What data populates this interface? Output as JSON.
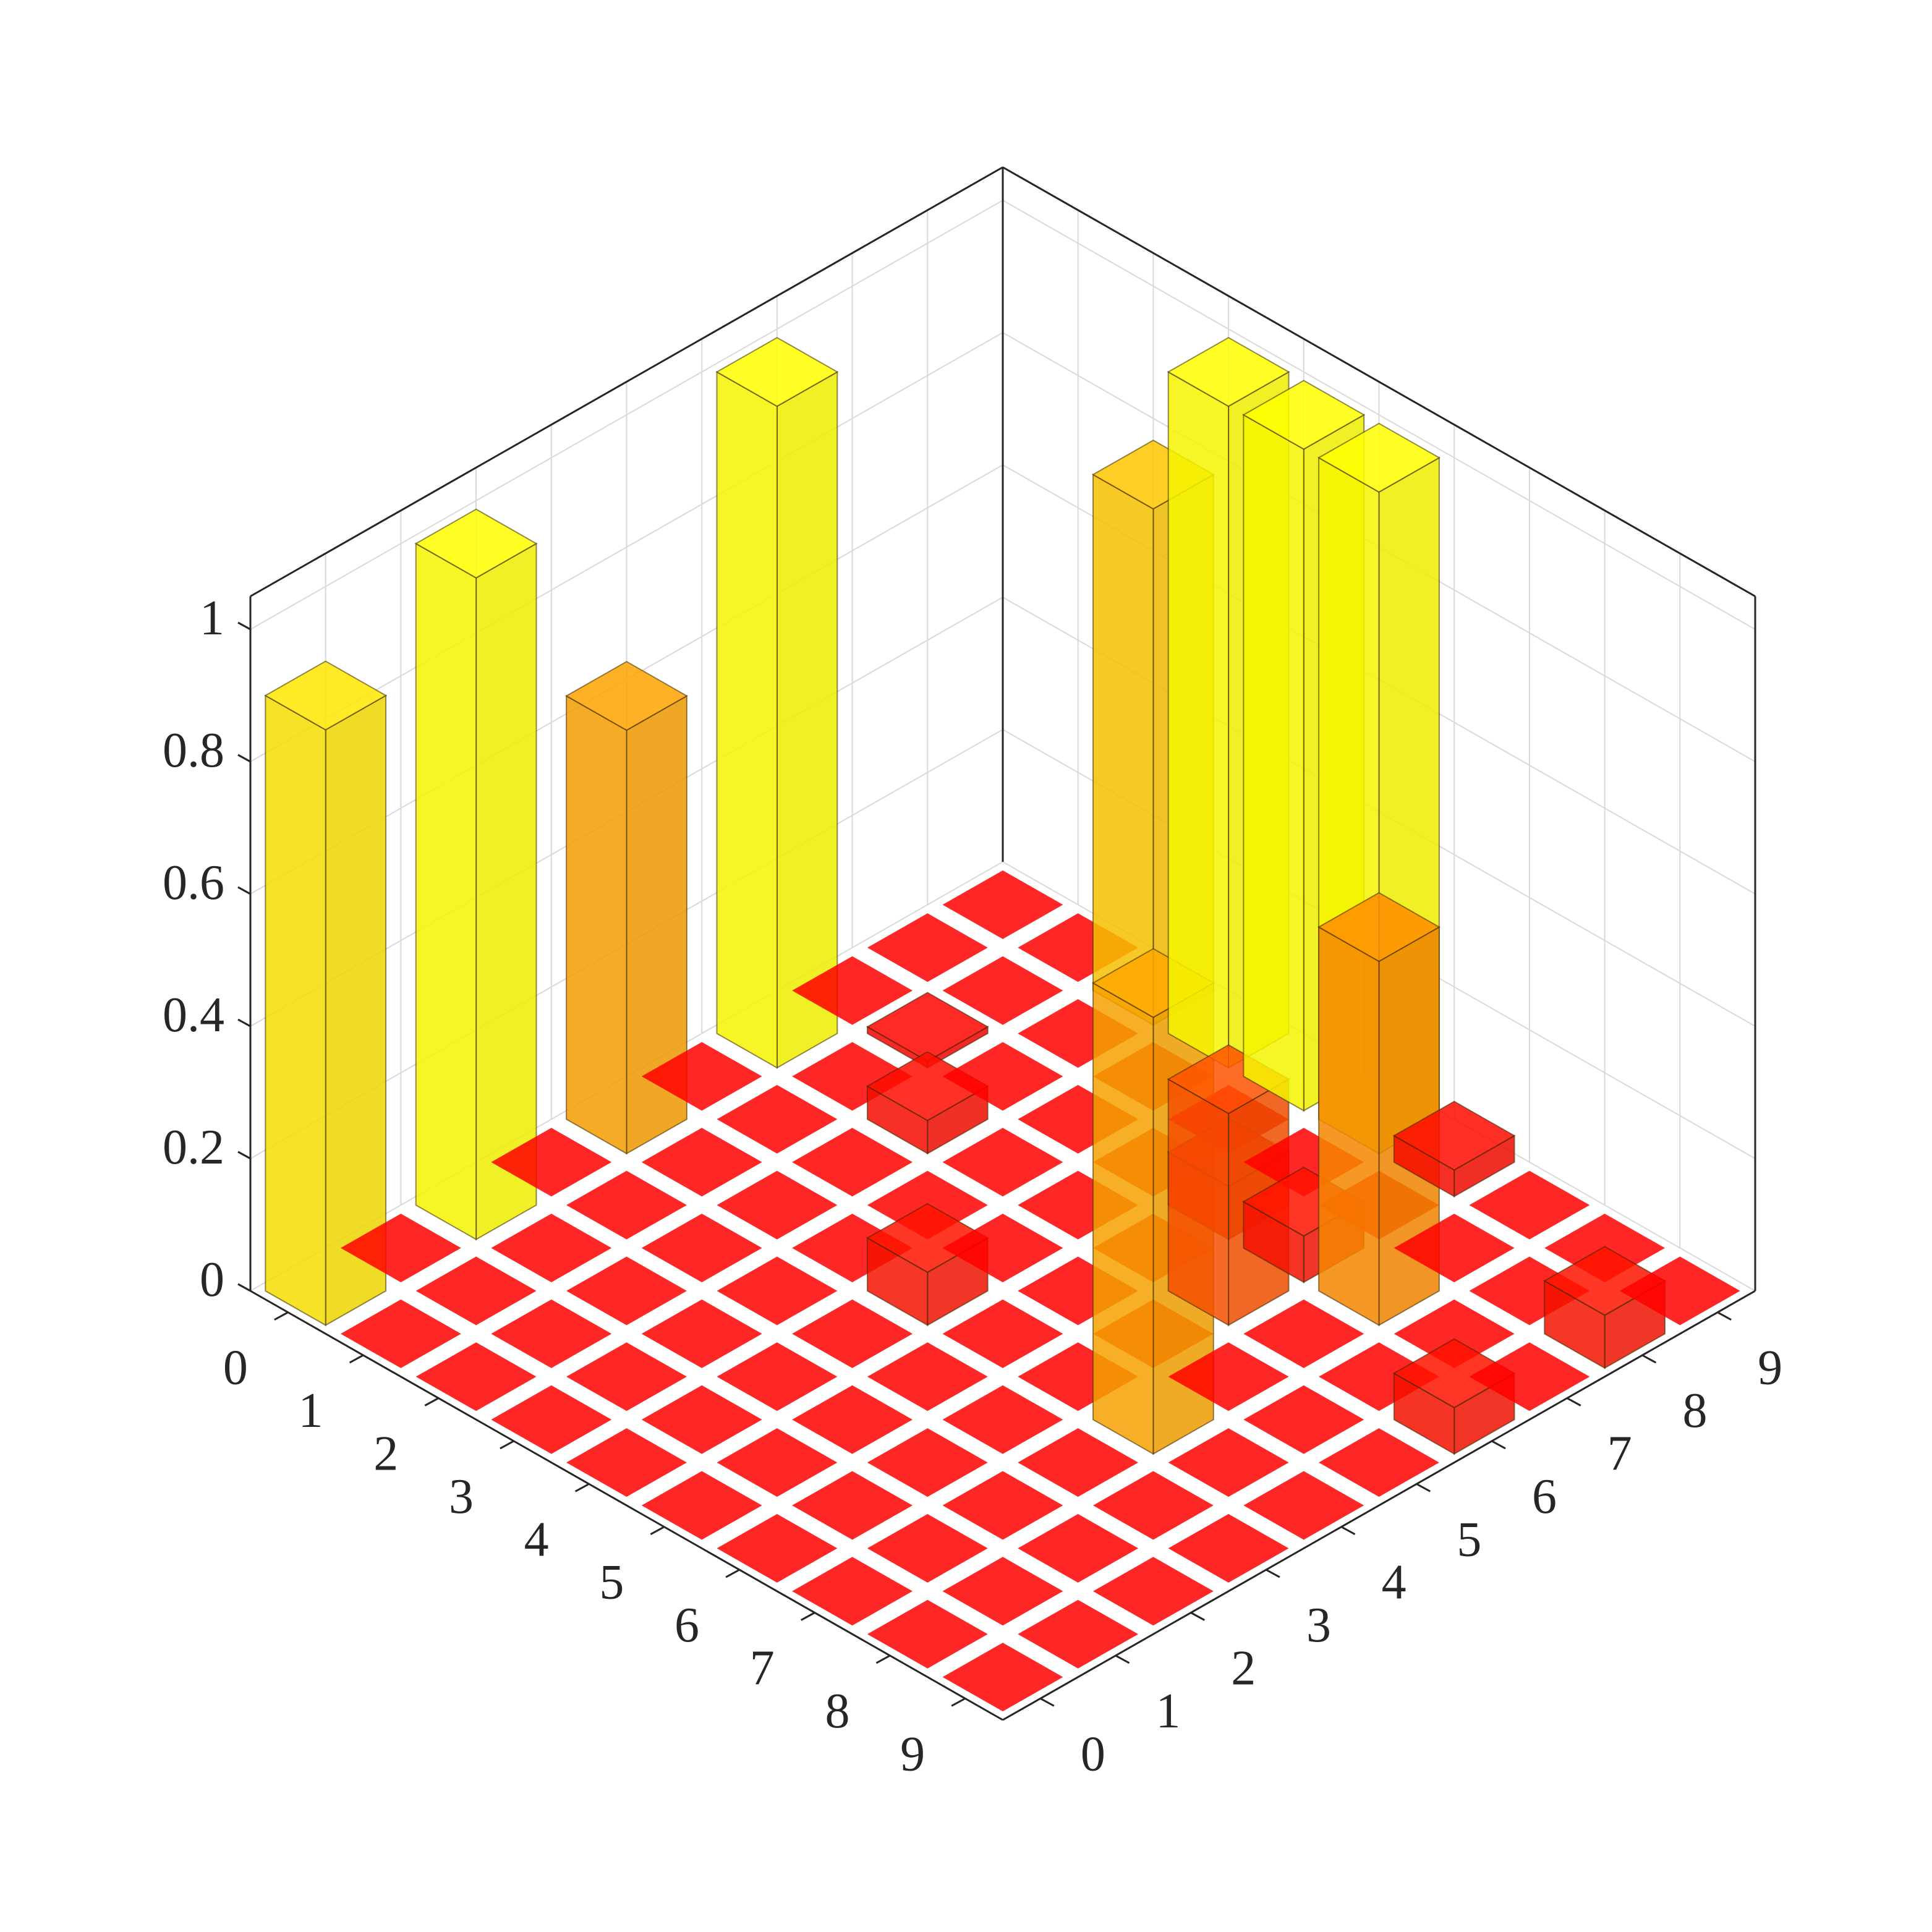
{
  "chart_data": {
    "type": "bar3d",
    "title": "",
    "xlabel": "",
    "ylabel": "",
    "zlabel": "",
    "x_ticks": [
      "0",
      "1",
      "2",
      "3",
      "4",
      "5",
      "6",
      "7",
      "8",
      "9"
    ],
    "y_ticks": [
      "0",
      "1",
      "2",
      "3",
      "4",
      "5",
      "6",
      "7",
      "8",
      "9"
    ],
    "z_ticks": [
      "0",
      "0.2",
      "0.4",
      "0.6",
      "0.8",
      "1"
    ],
    "zlim": [
      0,
      1.05
    ],
    "grid": true,
    "colormap": "autumn",
    "colormap_colors": {
      "low": "#ff0000",
      "high": "#ffff00"
    },
    "bar_alpha": 0.85,
    "default_value": 0.0,
    "values": [
      {
        "x": 0,
        "y": 0,
        "z": 0.9
      },
      {
        "x": 0,
        "y": 2,
        "z": 1.0
      },
      {
        "x": 0,
        "y": 4,
        "z": 0.64
      },
      {
        "x": 0,
        "y": 6,
        "z": 1.0
      },
      {
        "x": 0,
        "y": 9,
        "z": 0.0
      },
      {
        "x": 2,
        "y": 9,
        "z": 0.78
      },
      {
        "x": 3,
        "y": 9,
        "z": 1.0
      },
      {
        "x": 4,
        "y": 9,
        "z": 1.0
      },
      {
        "x": 5,
        "y": 9,
        "z": 1.0
      },
      {
        "x": 4,
        "y": 4,
        "z": 0.08
      },
      {
        "x": 2,
        "y": 6,
        "z": 0.05
      },
      {
        "x": 1,
        "y": 7,
        "z": 0.01
      },
      {
        "x": 6,
        "y": 9,
        "z": 0.04
      },
      {
        "x": 5,
        "y": 7,
        "z": 0.08
      },
      {
        "x": 6,
        "y": 7,
        "z": 0.07
      },
      {
        "x": 9,
        "y": 6,
        "z": 0.07
      },
      {
        "x": 7,
        "y": 7,
        "z": 0.55
      },
      {
        "x": 7,
        "y": 4,
        "z": 0.66
      },
      {
        "x": 6,
        "y": 6,
        "z": 0.32
      },
      {
        "x": 9,
        "y": 8,
        "z": 0.08
      }
    ]
  }
}
